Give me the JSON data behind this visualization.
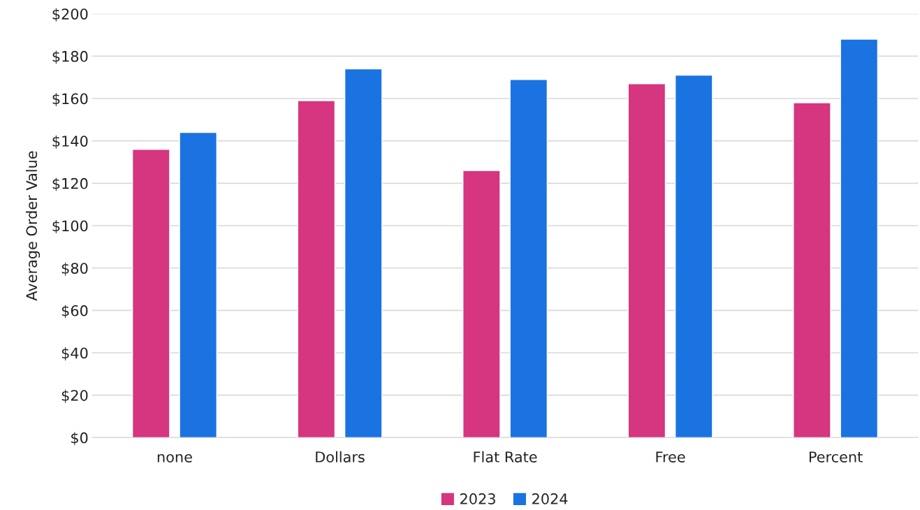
{
  "chart_data": {
    "type": "bar",
    "ylabel": "Average Order Value",
    "categories": [
      "none",
      "Dollars",
      "Flat Rate",
      "Free",
      "Percent"
    ],
    "series": [
      {
        "name": "2023",
        "color": "#d6357f",
        "values": [
          136,
          159,
          126,
          167,
          158
        ]
      },
      {
        "name": "2024",
        "color": "#1a73e0",
        "values": [
          144,
          174,
          169,
          171,
          188
        ]
      }
    ],
    "ylim": [
      0,
      200
    ],
    "yticks": [
      {
        "value": 0,
        "label": "$0"
      },
      {
        "value": 20,
        "label": "$20"
      },
      {
        "value": 40,
        "label": "$40"
      },
      {
        "value": 60,
        "label": "$60"
      },
      {
        "value": 80,
        "label": "$80"
      },
      {
        "value": 100,
        "label": "$100"
      },
      {
        "value": 120,
        "label": "$120"
      },
      {
        "value": 140,
        "label": "$140"
      },
      {
        "value": 160,
        "label": "$160"
      },
      {
        "value": 180,
        "label": "$180"
      },
      {
        "value": 200,
        "label": "$200"
      }
    ],
    "grid": "y",
    "legend": "bottom"
  }
}
